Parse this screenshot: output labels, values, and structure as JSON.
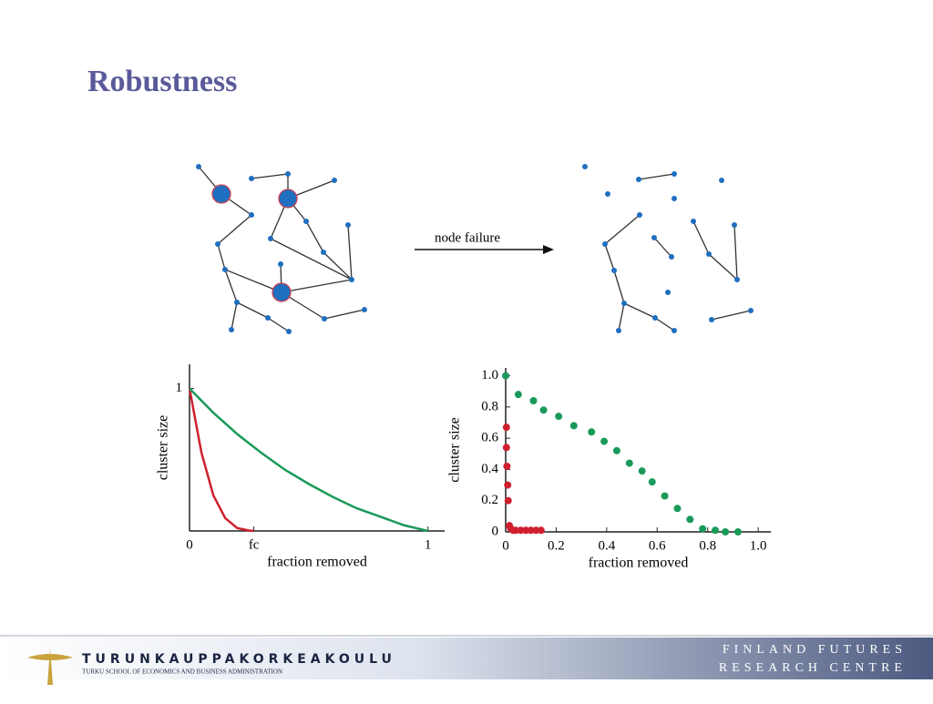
{
  "slide_title": "Robustness",
  "diagram": {
    "arrow_label": "node failure"
  },
  "chart_data": [
    {
      "type": "line",
      "ylabel": "cluster size",
      "xlabel": "fraction removed",
      "xlim": [
        0,
        1.07
      ],
      "ylim": [
        0,
        1.17
      ],
      "xticks": [
        0,
        {
          "value": 0.27,
          "label": "fc"
        },
        1
      ],
      "yticks": [
        1
      ],
      "series": [
        {
          "color": "#d0202e",
          "x": [
            0,
            0.05,
            0.1,
            0.15,
            0.2,
            0.25,
            0.27
          ],
          "values": [
            1,
            0.55,
            0.25,
            0.09,
            0.02,
            0.003,
            0
          ]
        },
        {
          "color": "#1a9a5a",
          "x": [
            0,
            0.1,
            0.2,
            0.3,
            0.4,
            0.5,
            0.6,
            0.7,
            0.8,
            0.9,
            1
          ],
          "values": [
            1,
            0.83,
            0.68,
            0.55,
            0.43,
            0.33,
            0.24,
            0.16,
            0.1,
            0.04,
            0
          ]
        }
      ]
    },
    {
      "type": "scatter",
      "ylabel": "cluster size",
      "xlabel": "fraction removed",
      "xlim": [
        0,
        1.05
      ],
      "ylim": [
        0,
        1.05
      ],
      "xticks": [
        0,
        0.2,
        0.4,
        0.6,
        0.8,
        {
          "value": 1,
          "label": "1.0"
        }
      ],
      "yticks": [
        0,
        0.2,
        0.4,
        0.6,
        0.8,
        {
          "value": 1,
          "label": "1.0"
        }
      ],
      "series": [
        {
          "color": "#1a9a5a",
          "x": [
            0,
            0.05,
            0.11,
            0.15,
            0.21,
            0.27,
            0.34,
            0.39,
            0.44,
            0.49,
            0.54,
            0.58,
            0.63,
            0.68,
            0.73,
            0.78,
            0.83,
            0.87,
            0.92
          ],
          "values": [
            1,
            0.88,
            0.84,
            0.78,
            0.74,
            0.68,
            0.64,
            0.58,
            0.52,
            0.44,
            0.39,
            0.32,
            0.23,
            0.15,
            0.08,
            0.02,
            0.01,
            0,
            0
          ]
        },
        {
          "color": "#d0202e",
          "x": [
            0.003,
            0.003,
            0.005,
            0.008,
            0.01,
            0.015,
            0.02,
            0.03,
            0.04,
            0.06,
            0.08,
            0.1,
            0.12,
            0.14
          ],
          "values": [
            0.67,
            0.54,
            0.42,
            0.3,
            0.2,
            0.04,
            0.02,
            0.01,
            0.01,
            0.01,
            0.01,
            0.01,
            0.01,
            0.01
          ]
        }
      ]
    }
  ],
  "footer": {
    "school": "TURUNKAUPPAKORKEAKOULU",
    "school_sub": "TURKU SCHOOL OF ECONOMICS AND BUSINESS ADMINISTRATION",
    "centre_line1": "FINLAND FUTURES",
    "centre_line2": "RESEARCH CENTRE"
  }
}
